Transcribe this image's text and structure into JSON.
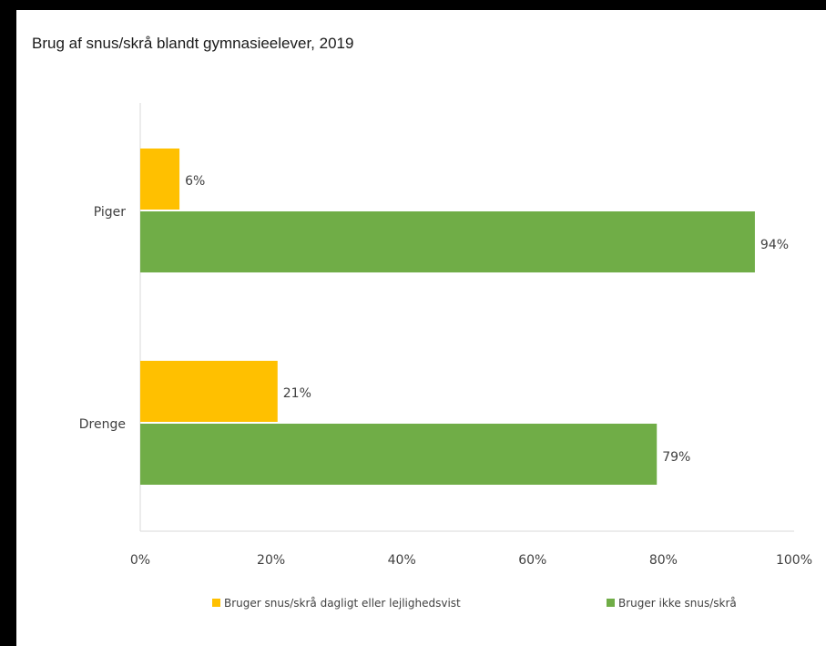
{
  "chart_data": {
    "type": "bar",
    "orientation": "horizontal",
    "title": "Brug af snus/skrå blandt gymnasieelever, 2019",
    "categories": [
      "Piger",
      "Drenge"
    ],
    "series": [
      {
        "name": "Bruger snus/skrå dagligt eller lejlighedsvist",
        "values": [
          6,
          21
        ],
        "labels": [
          "6%",
          "21%"
        ],
        "color": "#FFC000"
      },
      {
        "name": "Bruger ikke snus/skrå",
        "values": [
          94,
          79
        ],
        "labels": [
          "94%",
          "79%"
        ],
        "color": "#70AD47"
      }
    ],
    "xlim": [
      0,
      100
    ],
    "x_ticks": [
      "0%",
      "20%",
      "40%",
      "60%",
      "80%",
      "100%"
    ],
    "grid": false,
    "legend": "bottom"
  }
}
